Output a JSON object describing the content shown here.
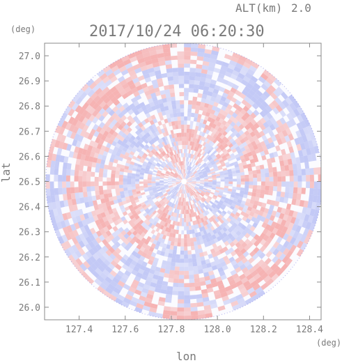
{
  "header": {
    "alt_label": "ALT(km)",
    "alt_value": "2.0",
    "timestamp": "2017/10/24 06:20:30"
  },
  "chart_data": {
    "type": "heatmap",
    "title": "2017/10/24 06:20:30",
    "subtitle": "ALT(km) 2.0",
    "xlabel": "lon",
    "ylabel": "lat",
    "x_unit": "(deg)",
    "y_unit": "(deg)",
    "xlim": [
      127.25,
      128.45
    ],
    "ylim": [
      25.95,
      27.05
    ],
    "x_ticks": [
      "127.4",
      "127.6",
      "127.8",
      "128.0",
      "128.2",
      "128.4"
    ],
    "y_ticks": [
      "26.0",
      "26.1",
      "26.2",
      "26.3",
      "26.4",
      "26.5",
      "26.6",
      "26.7",
      "26.8",
      "26.9",
      "27.0"
    ],
    "center": {
      "lon": 127.855,
      "lat": 26.5
    },
    "radius_deg_lat": 0.55,
    "colors": {
      "positive": "#f4a6a6",
      "negative": "#b8bff4",
      "neutral": "#ffffff",
      "edge": "#3a3ad8"
    },
    "grid": false,
    "legend": "none"
  }
}
